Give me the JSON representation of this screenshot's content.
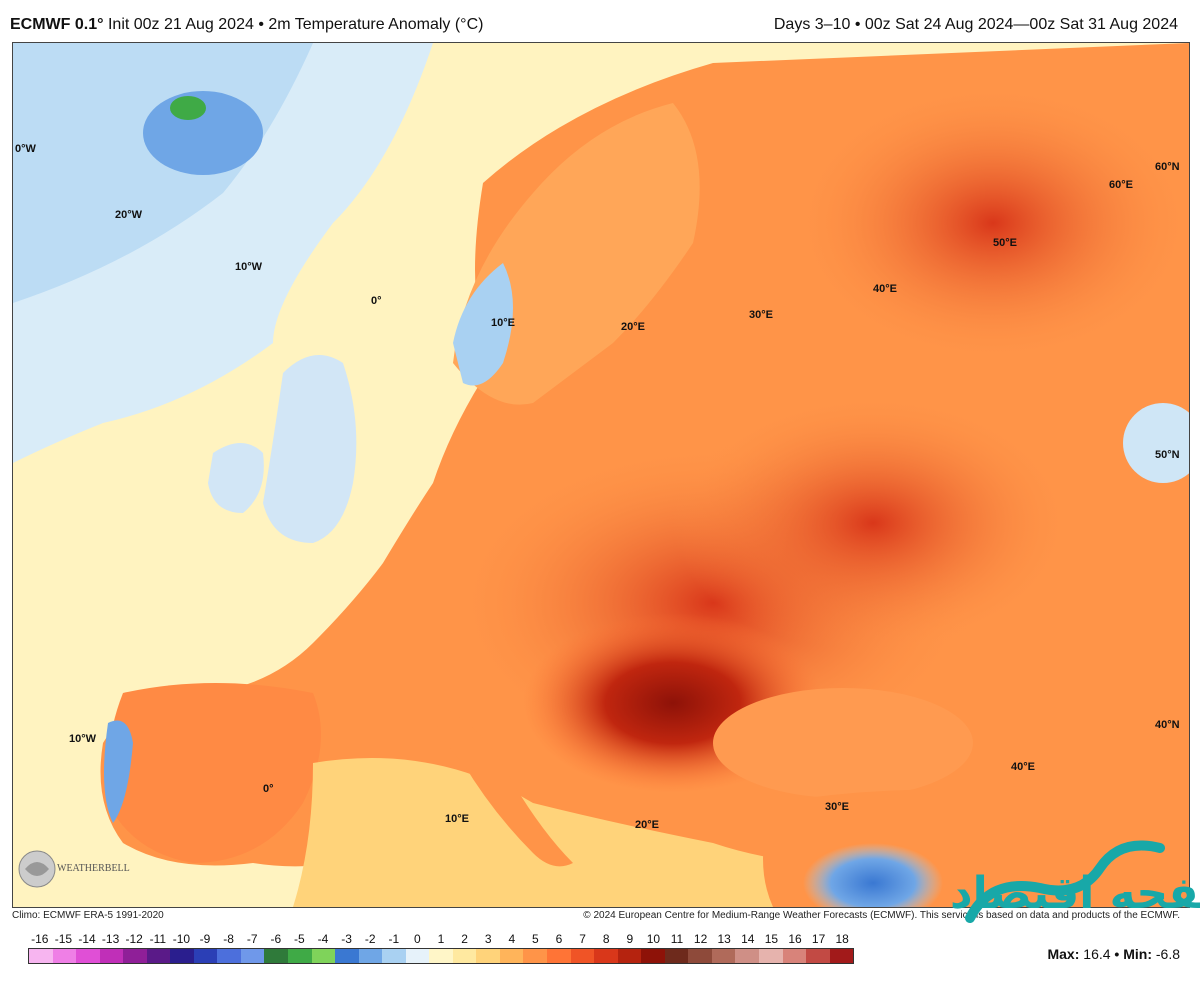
{
  "header": {
    "model": "ECMWF 0.1°",
    "init": "Init 00z 21 Aug 2024",
    "sep": "•",
    "product": "2m Temperature Anomaly (°C)",
    "valid_range": "Days 3–10 • 00z Sat 24 Aug 2024—00z Sat 31 Aug 2024"
  },
  "map": {
    "meridian_labels": [
      "0°W",
      "20°W",
      "10°W",
      "0°",
      "10°E",
      "20°E",
      "30°E",
      "40°E",
      "50°E",
      "60°E",
      "60°N",
      "50°N",
      "40°N",
      "10°W",
      "0°",
      "10°E",
      "20°E",
      "30°E",
      "40°E"
    ],
    "logo_text": "WEATHERBELL"
  },
  "footer": {
    "climo": "Climo: ECMWF ERA-5 1991-2020",
    "copyright": "© 2024 European Centre for Medium-Range Weather Forecasts (ECMWF). This service is based on data and products of the ECMWF."
  },
  "colorbar": {
    "ticks": [
      "-16",
      "-15",
      "-14",
      "-13",
      "-12",
      "-11",
      "-10",
      "-9",
      "-8",
      "-7",
      "-6",
      "-5",
      "-4",
      "-3",
      "-2",
      "-1",
      "0",
      "1",
      "2",
      "3",
      "4",
      "5",
      "6",
      "7",
      "8",
      "9",
      "10",
      "11",
      "12",
      "13",
      "14",
      "15",
      "16",
      "17",
      "18"
    ],
    "colors": [
      "#f7b5f0",
      "#ef7fe6",
      "#e04fd6",
      "#c02fb8",
      "#8f1f98",
      "#5a1a88",
      "#2a1e8e",
      "#2b3fb6",
      "#4c6fdc",
      "#6f98ea",
      "#2f7a3a",
      "#3faa46",
      "#7fd35a",
      "#3a78d2",
      "#6fa6e6",
      "#a9d1f2",
      "#e6f2fa",
      "#fff6c8",
      "#ffe9a0",
      "#ffd37a",
      "#ffb45a",
      "#ff9448",
      "#ff7436",
      "#f05426",
      "#d9371a",
      "#b5230f",
      "#8e1208",
      "#6e2a1c",
      "#8e4a3a",
      "#b06a5a",
      "#cf8f86",
      "#e6b3ad",
      "#d8837a",
      "#c24a44",
      "#a21a1a"
    ]
  },
  "stats": {
    "max_label": "Max:",
    "max_value": "16.4",
    "min_label": "Min:",
    "min_value": "-6.8",
    "sep": "•"
  },
  "watermark_text": "صفحه اقتصاد",
  "colors": {
    "ocean_cold": "#a9d1f2",
    "ocean_neutral": "#fff3c0",
    "land_warm": "#ff9448",
    "land_hot": "#d9371a",
    "land_extreme": "#8e1208",
    "watermark": "#18a8a8"
  }
}
